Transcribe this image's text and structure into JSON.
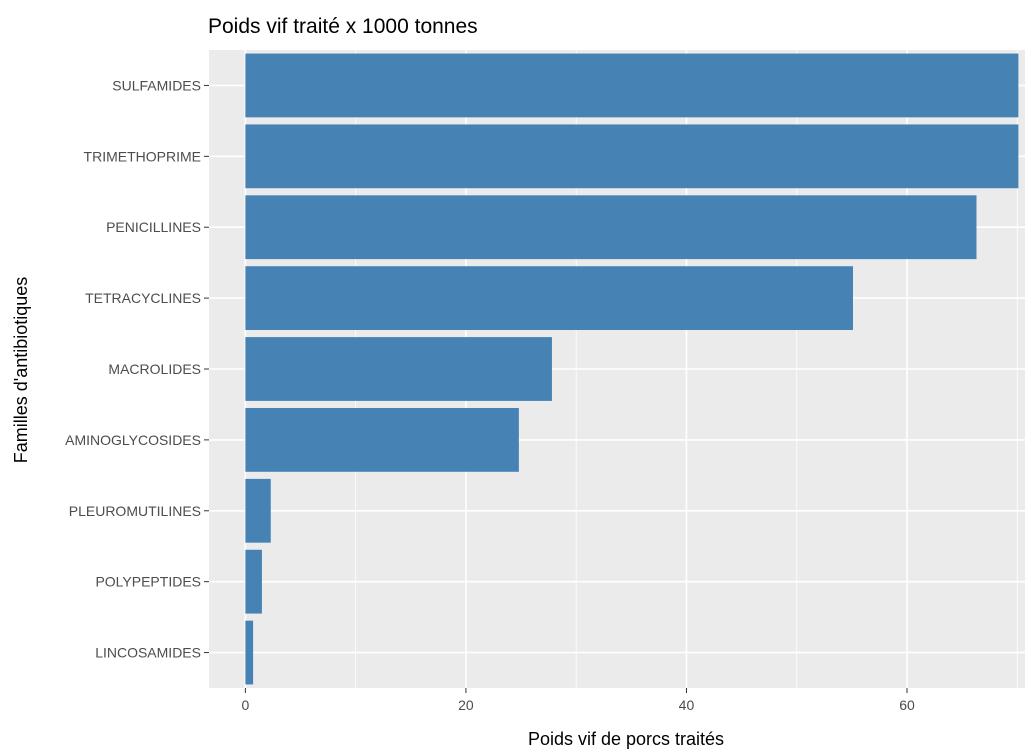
{
  "colors": {
    "panel_background": "#ebebeb",
    "gridline": "#ffffff",
    "bar_fill": "#4682b4",
    "tick_color": "#333333",
    "text_color": "#4d4d4d"
  },
  "chart_data": {
    "type": "bar",
    "orientation": "horizontal",
    "title": "Poids vif traité x 1000 tonnes",
    "xlabel": "Poids vif de porcs traités",
    "ylabel": "Familles d'antibiotiques",
    "xlim": [
      -3.3,
      70.7
    ],
    "xticks": [
      0,
      20,
      40,
      60
    ],
    "grid": true,
    "legend": "none",
    "categories": [
      "SULFAMIDES",
      "TRIMETHOPRIME",
      "PENICILLINES",
      "TETRACYCLINES",
      "MACROLIDES",
      "AMINOGLYCOSIDES",
      "PLEUROMUTILINES",
      "POLYPEPTIDES",
      "LINCOSAMIDES"
    ],
    "values": [
      70.1,
      70.1,
      66.3,
      55.1,
      27.8,
      24.8,
      2.3,
      1.5,
      0.7
    ]
  }
}
